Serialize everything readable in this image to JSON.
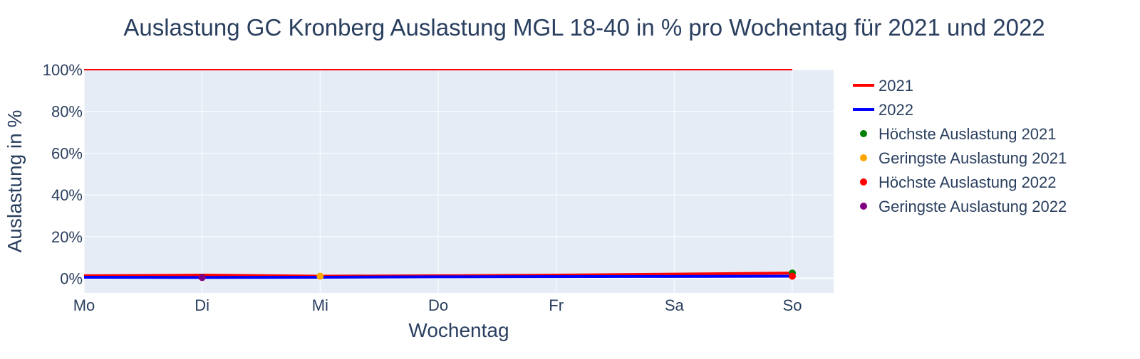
{
  "chart_data": {
    "type": "line",
    "title": "Auslastung GC Kronberg Auslastung MGL 18-40 in % pro Wochentag für 2021 und 2022",
    "xlabel": "Wochentag",
    "ylabel": "Auslastung in %",
    "categories": [
      "Mo",
      "Di",
      "Mi",
      "Do",
      "Fr",
      "Sa",
      "So"
    ],
    "y_ticks": [
      "0%",
      "20%",
      "40%",
      "60%",
      "80%",
      "100%"
    ],
    "y_tick_values": [
      0,
      20,
      40,
      60,
      80,
      100
    ],
    "ylim": [
      -7,
      100
    ],
    "grid": true,
    "legend_position": "right",
    "reference_line": {
      "value": 100,
      "color": "#ff0000",
      "x_from": "Mo",
      "x_to": "So"
    },
    "series": [
      {
        "name": "2021",
        "kind": "line",
        "color": "#ff0000",
        "values": [
          1.2,
          1.5,
          1.0,
          1.2,
          1.5,
          2.0,
          2.5
        ]
      },
      {
        "name": "2022",
        "kind": "line",
        "color": "#0000ff",
        "values": [
          0.5,
          0.4,
          0.5,
          0.7,
          0.8,
          0.9,
          1.0
        ]
      },
      {
        "name": "Höchste Auslastung 2021",
        "kind": "marker",
        "color": "#008000",
        "points": [
          {
            "x": "So",
            "y": 2.5
          }
        ]
      },
      {
        "name": "Geringste Auslastung 2021",
        "kind": "marker",
        "color": "#ffa500",
        "points": [
          {
            "x": "Mi",
            "y": 1.0
          }
        ]
      },
      {
        "name": "Höchste Auslastung 2022",
        "kind": "marker",
        "color": "#ff0000",
        "points": [
          {
            "x": "So",
            "y": 1.0
          }
        ]
      },
      {
        "name": "Geringste Auslastung 2022",
        "kind": "marker",
        "color": "#800080",
        "points": [
          {
            "x": "Di",
            "y": 0.4
          }
        ]
      }
    ]
  }
}
